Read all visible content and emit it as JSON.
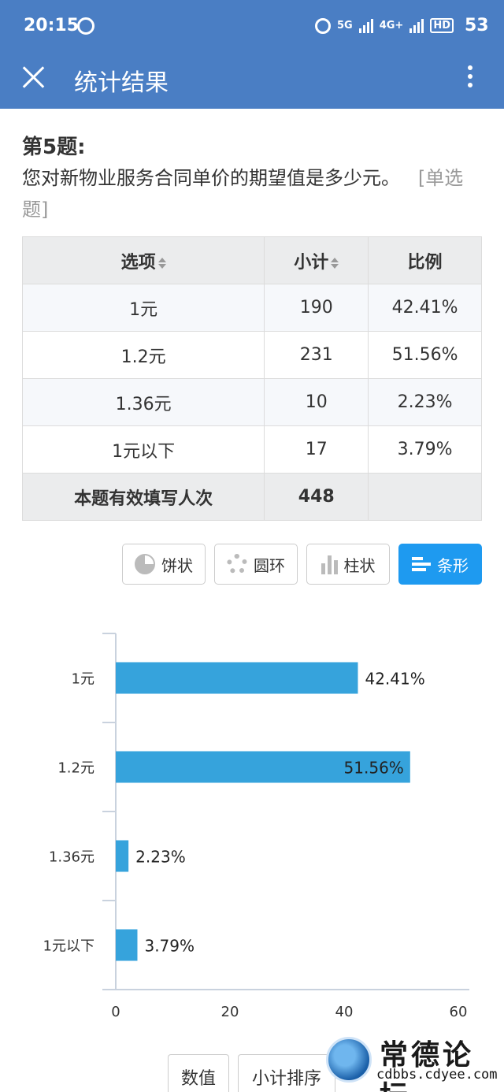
{
  "status_bar": {
    "time": "20:15",
    "net_5g": "5G",
    "net_4g": "4G+",
    "hd": "HD",
    "battery": "53"
  },
  "header": {
    "title": "统计结果",
    "close_icon": "close-icon",
    "more_icon": "more-vertical-icon"
  },
  "question": {
    "number": "第5题:",
    "text": "您对新物业服务合同单价的期望值是多少元。",
    "type_tag": "[单选题]"
  },
  "table": {
    "headers": [
      "选项",
      "小计",
      "比例"
    ],
    "rows": [
      {
        "option": "1元",
        "count": "190",
        "ratio": "42.41%"
      },
      {
        "option": "1.2元",
        "count": "231",
        "ratio": "51.56%"
      },
      {
        "option": "1.36元",
        "count": "10",
        "ratio": "2.23%"
      },
      {
        "option": "1元以下",
        "count": "17",
        "ratio": "3.79%"
      }
    ],
    "total_label": "本题有效填写人次",
    "total_value": "448"
  },
  "chart_tabs": [
    {
      "label": "饼状",
      "icon": "pie-chart-icon",
      "active": false
    },
    {
      "label": "圆环",
      "icon": "donut-chart-icon",
      "active": false
    },
    {
      "label": "柱状",
      "icon": "column-chart-icon",
      "active": false
    },
    {
      "label": "条形",
      "icon": "bar-chart-icon",
      "active": true
    }
  ],
  "chart_data": {
    "type": "bar",
    "orientation": "horizontal",
    "categories": [
      "1元",
      "1.2元",
      "1.36元",
      "1元以下"
    ],
    "values": [
      42.41,
      51.56,
      2.23,
      3.79
    ],
    "data_labels": [
      "42.41%",
      "51.56%",
      "2.23%",
      "3.79%"
    ],
    "x_ticks": [
      "0",
      "20",
      "40",
      "60"
    ],
    "xlim": [
      0,
      60
    ],
    "bar_color": "#36a3dc"
  },
  "bottom_buttons": [
    "数值",
    "小计排序"
  ],
  "watermark": {
    "name": "常德论坛",
    "url": "cdbbs.cdyee.com"
  }
}
